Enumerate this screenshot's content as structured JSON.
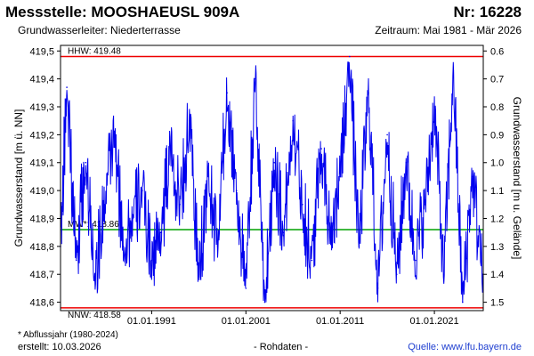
{
  "header": {
    "title": "Messstelle: MOOSHAEUSL 909A",
    "number": "Nr: 16228",
    "aquifer": "Grundwasserleiter:   Niederterrasse",
    "period": "Zeitraum: Mai 1981 - Mär 2026"
  },
  "footer": {
    "footnote": "* Abflussjahr (1980-2024)",
    "created": "erstellt:  10.03.2026",
    "rawdata": "- Rohdaten -",
    "source": "Quelle: www.lfu.bayern.de"
  },
  "colors": {
    "series": "#0000ee",
    "hhw_nnw": "#ee0000",
    "mw": "#00a000",
    "source_link": "#1f3fd0"
  },
  "chart_data": {
    "type": "line",
    "ylabel_left": "Grundwasserstand [m ü. NN]",
    "ylabel_right": "Grundwasserstand [m u. Gelände]",
    "ylim_left": [
      418.57,
      419.52
    ],
    "yticks_left": [
      "419,5",
      "419,4",
      "419,3",
      "419,2",
      "419,1",
      "419,0",
      "418,9",
      "418,8",
      "418,7",
      "418,6"
    ],
    "yticks_left_values": [
      419.5,
      419.4,
      419.3,
      419.2,
      419.1,
      419.0,
      418.9,
      418.8,
      418.7,
      418.6
    ],
    "yticks_right": [
      "0.6",
      "0.7",
      "0.8",
      "0.9",
      "1.0",
      "1.1",
      "1.2",
      "1.3",
      "1.4",
      "1.5"
    ],
    "xlim": [
      "1981-05-01",
      "2026-03-10"
    ],
    "xticks": [
      "01.01.1991",
      "01.01.2001",
      "01.01.2011",
      "01.01.2021"
    ],
    "xticks_dates": [
      "1991-01-01",
      "2001-01-01",
      "2011-01-01",
      "2021-01-01"
    ],
    "reference_lines": [
      {
        "label": "HHW: 419.48",
        "value": 419.48,
        "color": "#ee0000"
      },
      {
        "label": "MW*: 418.86",
        "value": 418.86,
        "color": "#00a000"
      },
      {
        "label": "NNW: 418.58",
        "value": 418.58,
        "color": "#ee0000"
      }
    ],
    "series": [
      {
        "x": [
          "1981-05",
          "1982-01",
          "1983-01",
          "1984-01",
          "1985-01",
          "1986-01",
          "1987-01",
          "1988-01",
          "1989-01",
          "1990-01",
          "1991-01",
          "1992-01",
          "1993-01",
          "1994-01",
          "1995-01",
          "1996-01",
          "1997-01",
          "1998-01",
          "1999-01",
          "2000-01",
          "2001-01",
          "2002-01",
          "2003-01",
          "2004-01",
          "2005-01",
          "2006-01",
          "2007-01",
          "2008-01",
          "2009-01",
          "2010-01",
          "2011-01",
          "2012-01",
          "2013-01",
          "2014-01",
          "2015-01",
          "2016-01",
          "2017-01",
          "2018-01",
          "2019-01",
          "2020-01",
          "2021-01",
          "2022-01",
          "2023-01",
          "2024-01",
          "2025-01",
          "2026-03"
        ],
        "y": [
          418.8,
          419.37,
          418.75,
          419.1,
          418.7,
          418.95,
          419.2,
          418.8,
          418.9,
          419.0,
          418.75,
          418.85,
          419.15,
          418.95,
          419.25,
          418.7,
          419.05,
          418.8,
          419.35,
          419.0,
          418.65,
          419.4,
          418.6,
          419.1,
          418.85,
          419.25,
          418.95,
          418.75,
          419.15,
          418.85,
          419.05,
          419.48,
          418.8,
          419.35,
          418.65,
          419.2,
          418.7,
          419.1,
          418.75,
          418.95,
          419.3,
          418.7,
          419.43,
          418.6,
          419.05,
          418.7
        ]
      }
    ]
  }
}
